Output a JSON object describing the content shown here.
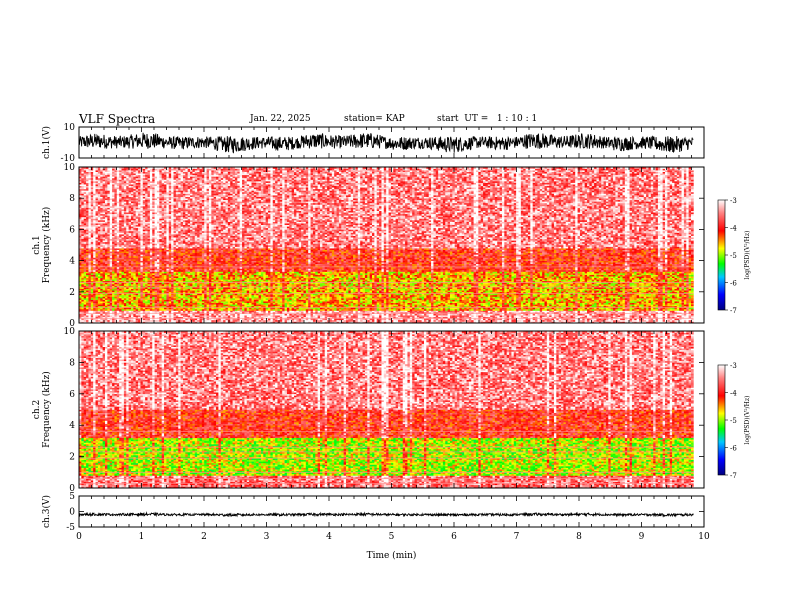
{
  "header": {
    "title": "VLF Spectra",
    "date": "Jan. 22, 2025",
    "station": "station= KAP",
    "start": "start  UT =   1 : 10 : 1"
  },
  "chart_data": [
    {
      "type": "line",
      "panel": "ch1-waveform",
      "ylabel": "ch.1(V)",
      "ylim": [
        -10,
        10
      ],
      "y_ticks": [
        "10",
        "-10"
      ],
      "x_range": [
        0,
        10
      ],
      "color": "#000000",
      "description_values": {
        "mean": 0,
        "amplitude_approx": 5
      }
    },
    {
      "type": "heatmap",
      "panel": "ch1-spectrogram",
      "ylabel_channel": "ch.1",
      "ylabel": "Frequency  (kHz)",
      "ylim": [
        0,
        10
      ],
      "y_ticks": [
        "0",
        "2",
        "4",
        "6",
        "8",
        "10"
      ],
      "x_range": [
        0,
        10
      ],
      "colorbar": {
        "label": "log(PSD)(V²/Hz)",
        "range": [
          -7,
          -3
        ],
        "ticks": [
          "-3",
          "-4",
          "-5",
          "-6",
          "-7"
        ],
        "colors": [
          "#00007f",
          "#0000ff",
          "#00c8ff",
          "#00ff00",
          "#ffff00",
          "#ff0000",
          "#ff8080",
          "#ffffff"
        ]
      },
      "bands_khz": [
        {
          "from": 0,
          "to": 0.8,
          "level": -3.4
        },
        {
          "from": 0.8,
          "to": 3.3,
          "level": -4.6
        },
        {
          "from": 3.3,
          "to": 4.8,
          "level": -4.0
        },
        {
          "from": 4.8,
          "to": 10,
          "level": -3.5
        }
      ]
    },
    {
      "type": "heatmap",
      "panel": "ch2-spectrogram",
      "ylabel_channel": "ch.2",
      "ylabel": "Frequency  (kHz)",
      "ylim": [
        0,
        10
      ],
      "y_ticks": [
        "0",
        "2",
        "4",
        "6",
        "8",
        "10"
      ],
      "x_range": [
        0,
        10
      ],
      "colorbar": {
        "label": "log(PSD)(V²/Hz)",
        "range": [
          -7,
          -3
        ],
        "ticks": [
          "-3",
          "-4",
          "-5",
          "-6",
          "-7"
        ],
        "colors": [
          "#00007f",
          "#0000ff",
          "#00c8ff",
          "#00ff00",
          "#ffff00",
          "#ff0000",
          "#ff8080",
          "#ffffff"
        ]
      },
      "bands_khz": [
        {
          "from": 0,
          "to": 0.8,
          "level": -3.6
        },
        {
          "from": 0.8,
          "to": 3.2,
          "level": -4.9
        },
        {
          "from": 3.2,
          "to": 5.0,
          "level": -4.0
        },
        {
          "from": 5.0,
          "to": 10,
          "level": -3.5
        }
      ]
    },
    {
      "type": "line",
      "panel": "ch3-waveform",
      "ylabel": "ch.3(V)",
      "ylim": [
        -5,
        5
      ],
      "y_ticks": [
        "5",
        "0",
        "-5"
      ],
      "x_range": [
        0,
        10
      ],
      "color": "#000000",
      "description_values": {
        "mean": -1,
        "amplitude_approx": 0.4
      }
    }
  ],
  "xaxis": {
    "label": "Time  (min)",
    "ticks": [
      "0",
      "1",
      "2",
      "3",
      "4",
      "5",
      "6",
      "7",
      "8",
      "9",
      "10"
    ],
    "data_end": 9.83
  }
}
